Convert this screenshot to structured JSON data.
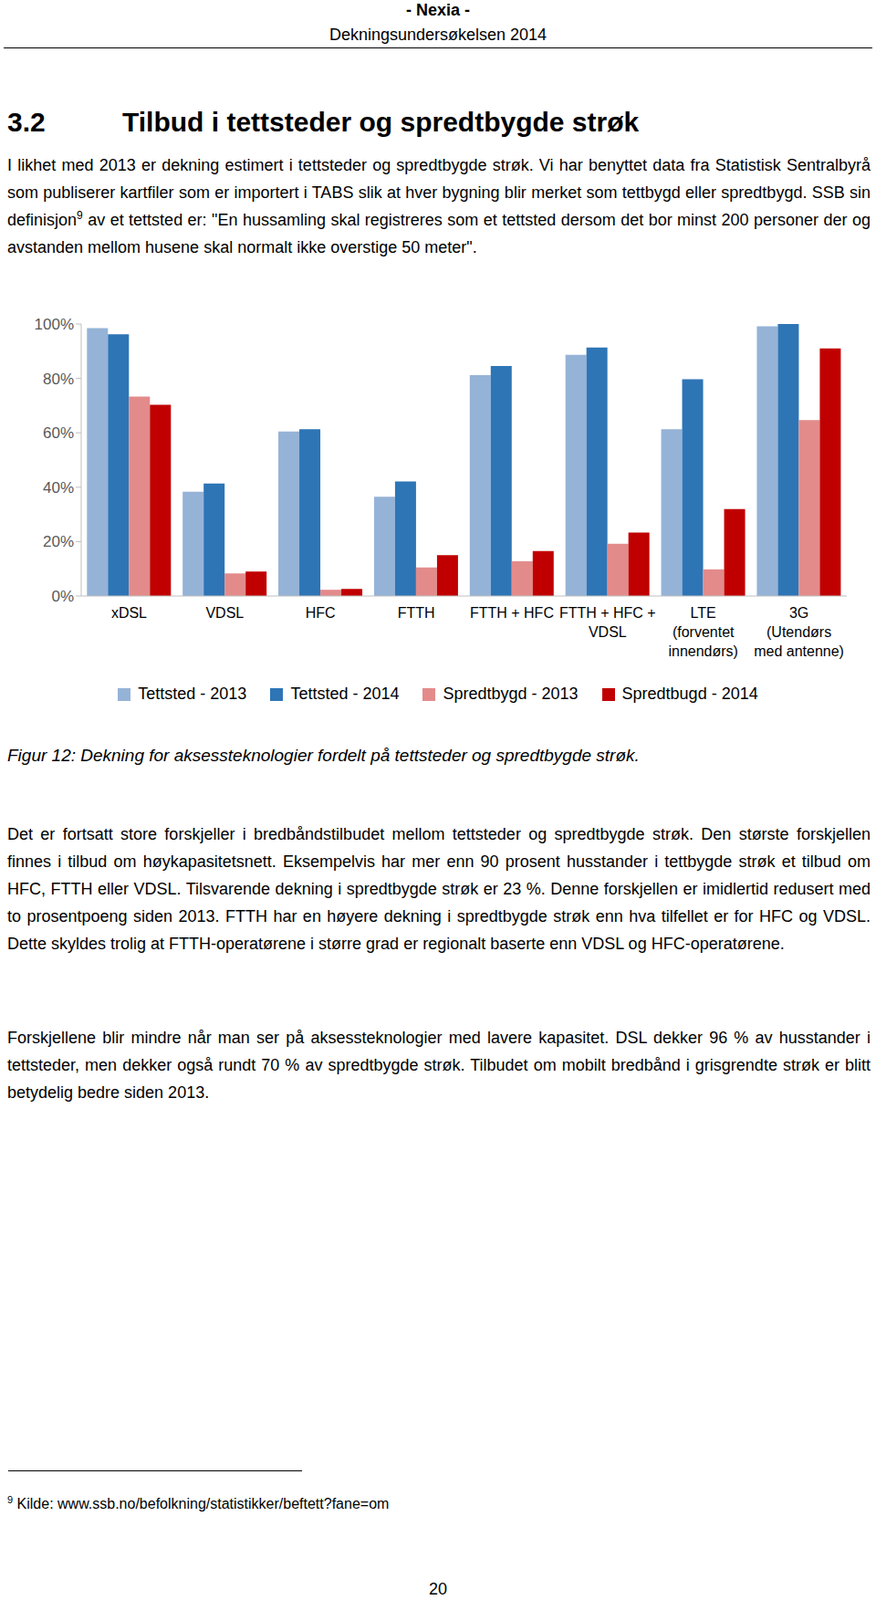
{
  "header": {
    "title": "- Nexia -",
    "subtitle": "Dekningsundersøkelsen 2014"
  },
  "section": {
    "number": "3.2",
    "title": "Tilbud i tettsteder og spredtbygde strøk"
  },
  "intro": {
    "before": "I likhet med 2013 er dekning estimert i tettsteder og spredtbygde strøk. Vi har benyttet data fra Statistisk Sentralbyrå som publiserer kartfiler som er importert i TABS slik at hver bygning blir merket som tettbygd eller spredtbygd. SSB sin definisjon",
    "footnote_ref": "9",
    "after": " av et tettsted er: \"En hussamling skal registreres som et tettsted dersom det bor minst 200 personer der og avstanden mellom husene skal normalt ikke overstige 50 meter\"."
  },
  "chart_data": {
    "type": "bar",
    "categories": [
      "xDSL",
      "VDSL",
      "HFC",
      "FTTH",
      "FTTH + HFC",
      "FTTH + HFC +\nVDSL",
      "LTE\n(forventet\ninnendørs)",
      "3G\n(Utendørs\nmed antenne)"
    ],
    "series": [
      {
        "name": "Tettsted - 2013",
        "color": "#95b3d7",
        "values": [
          98.5,
          38.3,
          60.5,
          36.5,
          81.2,
          88.7,
          61.3,
          99.2
        ]
      },
      {
        "name": "Tettsted - 2014",
        "color": "#2e75b6",
        "values": [
          96.2,
          41.4,
          61.3,
          42.1,
          84.6,
          91.4,
          79.7,
          100
        ]
      },
      {
        "name": "Spredtbygd - 2013",
        "color": "#e38b8b",
        "values": [
          73.3,
          8.3,
          2.3,
          10.5,
          12.8,
          19.2,
          9.8,
          64.7
        ]
      },
      {
        "name": "Spredtbugd - 2014",
        "color": "#c00000",
        "values": [
          70.3,
          9.0,
          2.6,
          15.0,
          16.5,
          23.3,
          32.0,
          91.0
        ]
      }
    ],
    "ylim": [
      0,
      100
    ],
    "yticks": [
      {
        "value": 0,
        "label": "0%"
      },
      {
        "value": 20,
        "label": "20%"
      },
      {
        "value": 40,
        "label": "40%"
      },
      {
        "value": 60,
        "label": "60%"
      },
      {
        "value": 80,
        "label": "80%"
      },
      {
        "value": 100,
        "label": "100%"
      }
    ],
    "grid": false,
    "legend": "bottom"
  },
  "caption": "Figur 12: Dekning for aksessteknologier fordelt på tettsteder og spredtbygde strøk.",
  "paragraphs": [
    "Det er fortsatt store forskjeller i bredbåndstilbudet mellom tettsteder og spredtbygde strøk. Den største forskjellen finnes i tilbud om høykapasitetsnett. Eksempelvis har mer enn 90 prosent husstander i tettbygde strøk et tilbud om HFC, FTTH eller VDSL. Tilsvarende dekning i spredtbygde strøk er 23 %. Denne forskjellen er imidlertid redusert med to prosentpoeng siden 2013. FTTH har en høyere dekning i spredtbygde strøk enn hva tilfellet er for HFC og VDSL. Dette skyldes trolig at FTTH-operatørene i større grad er regionalt baserte enn VDSL og HFC-operatørene.",
    "Forskjellene blir mindre når man ser på aksessteknologier med lavere kapasitet. DSL dekker 96 % av husstander i tettsteder, men dekker også rundt 70 % av spredtbygde strøk. Tilbudet om mobilt bredbånd i grisgrendte strøk er blitt betydelig bedre siden 2013."
  ],
  "footnote": {
    "mark": "9",
    "text": "Kilde: www.ssb.no/befolkning/statistikker/beftett?fane=om"
  },
  "page_number": "20"
}
